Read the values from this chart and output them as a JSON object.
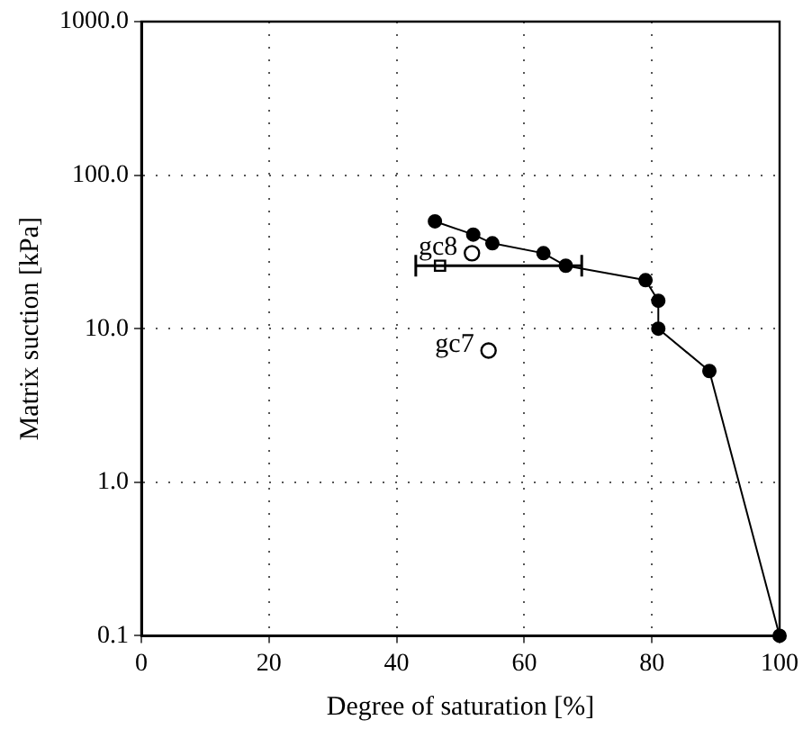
{
  "chart_data": {
    "type": "line",
    "xlabel": "Degree of saturation [%]",
    "ylabel": "Matrix suction [kPa]",
    "xlim": [
      0,
      100
    ],
    "xticks": [
      0,
      20,
      40,
      60,
      80,
      100
    ],
    "ylim": [
      0.1,
      1000
    ],
    "yticks": [
      {
        "value": 0.1,
        "label": "0.1"
      },
      {
        "value": 1,
        "label": "1.0"
      },
      {
        "value": 10,
        "label": "10.0"
      },
      {
        "value": 100,
        "label": "100.0"
      },
      {
        "value": 1000,
        "label": "1000.0"
      }
    ],
    "log": "y",
    "grid": true,
    "legend": false,
    "series": [
      {
        "color": "#000000",
        "marker": "circle",
        "line_style": "solid",
        "x": [
          46,
          52,
          55,
          63,
          66.5,
          79,
          81,
          81,
          89,
          100
        ],
        "values": [
          50,
          41,
          36,
          31,
          25.7,
          20.7,
          15.2,
          10,
          5.3,
          0.1
        ]
      },
      {
        "type": "scatter",
        "color": "#000000",
        "marker": "circle",
        "x": [
          51.8,
          54.4
        ],
        "values": [
          31,
          7.2
        ]
      },
      {
        "type": "scatter",
        "color": "#000000",
        "marker": "square",
        "x": [
          46.8
        ],
        "values": [
          25.7
        ],
        "xerrors": [
          [
            43,
            69
          ]
        ]
      }
    ],
    "annotations": [
      {
        "text": "gc8",
        "x": 51.8,
        "y": 31
      },
      {
        "text": "gc7",
        "x": 54.4,
        "y": 7.2
      }
    ]
  }
}
